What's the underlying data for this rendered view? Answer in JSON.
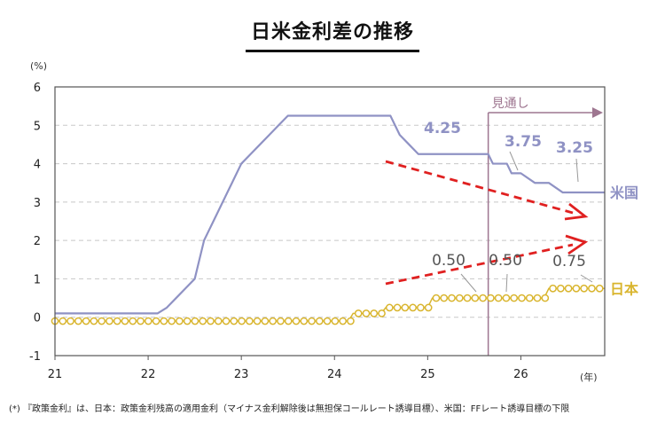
{
  "chart_data": {
    "type": "line",
    "title": "日米金利差の推移",
    "y_unit_label": "(%)",
    "x_unit_label": "(年)",
    "ylim": [
      -1,
      6
    ],
    "xlim": [
      21,
      26.9
    ],
    "yticks": [
      "-1",
      "0",
      "1",
      "2",
      "3",
      "4",
      "5",
      "6"
    ],
    "xticks": [
      "21",
      "22",
      "23",
      "24",
      "25",
      "26"
    ],
    "grid": "horizontal dashed",
    "forecast_label": "見通し",
    "forecast_start": 25.65,
    "series": [
      {
        "name": "米国",
        "color": "#8f92c4",
        "x": [
          21.0,
          22.1,
          22.2,
          22.3,
          22.4,
          22.5,
          22.55,
          22.6,
          22.65,
          22.7,
          22.8,
          22.85,
          22.9,
          22.95,
          23.0,
          23.1,
          23.2,
          23.3,
          23.4,
          23.5,
          23.6,
          24.6,
          24.7,
          24.8,
          24.9,
          25.0,
          25.65,
          25.7,
          25.85,
          25.9,
          26.0,
          26.15,
          26.3,
          26.45,
          26.55,
          26.9
        ],
        "values": [
          0.1,
          0.1,
          0.25,
          0.5,
          0.75,
          1.0,
          1.5,
          2.0,
          2.25,
          2.5,
          3.0,
          3.25,
          3.5,
          3.75,
          4.0,
          4.25,
          4.5,
          4.75,
          5.0,
          5.25,
          5.25,
          5.25,
          4.75,
          4.5,
          4.25,
          4.25,
          4.25,
          4.0,
          4.0,
          3.75,
          3.75,
          3.5,
          3.5,
          3.25,
          3.25,
          3.25
        ]
      },
      {
        "name": "日本",
        "color": "#d9b52e",
        "x": [
          21.0,
          24.15,
          24.2,
          24.5,
          24.55,
          25.0,
          25.05,
          26.25,
          26.3,
          26.9
        ],
        "values": [
          -0.1,
          -0.1,
          0.1,
          0.1,
          0.25,
          0.25,
          0.5,
          0.5,
          0.75,
          0.75
        ]
      }
    ],
    "annotations": [
      {
        "text": "4.25",
        "series": "米国"
      },
      {
        "text": "3.75",
        "series": "米国"
      },
      {
        "text": "3.25",
        "series": "米国"
      },
      {
        "text": "0.50",
        "series": "日本"
      },
      {
        "text": "0.50",
        "series": "日本"
      },
      {
        "text": "0.75",
        "series": "日本"
      }
    ],
    "trend_arrows": [
      {
        "series": "米国",
        "direction": "down",
        "color": "#e02020"
      },
      {
        "series": "日本",
        "direction": "up",
        "color": "#e02020"
      }
    ]
  },
  "footnote": "(*) 『政策金利』は、日本：政策金利残高の適用金利（マイナス金利解除後は無担保コールレート誘導目標）、米国：FFレート誘導目標の下限"
}
